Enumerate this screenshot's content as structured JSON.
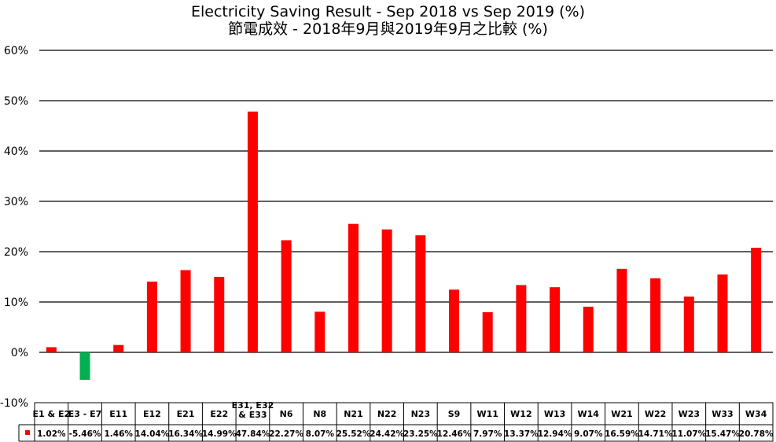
{
  "chart_data": {
    "type": "bar",
    "title": "Electricity Saving Result - Sep 2018 vs Sep 2019 (%)",
    "subtitle": "節電成效 - 2018年9月與2019年9月之比較 (%)",
    "xlabel": "",
    "ylabel": "",
    "ylim": [
      -10,
      60
    ],
    "yticks": [
      "-10%",
      "0%",
      "10%",
      "20%",
      "30%",
      "40%",
      "50%",
      "60%"
    ],
    "ytick_values": [
      -10,
      0,
      10,
      20,
      30,
      40,
      50,
      60
    ],
    "grid": true,
    "categories": [
      [
        "E1 & E2"
      ],
      [
        "E3 - E7"
      ],
      [
        "E11"
      ],
      [
        "E12"
      ],
      [
        "E21"
      ],
      [
        "E22"
      ],
      [
        "E31, E32",
        "& E33"
      ],
      [
        "N6"
      ],
      [
        "N8"
      ],
      [
        "N21"
      ],
      [
        "N22"
      ],
      [
        "N23"
      ],
      [
        "S9"
      ],
      [
        "W11"
      ],
      [
        "W12"
      ],
      [
        "W13"
      ],
      [
        "W14"
      ],
      [
        "W21"
      ],
      [
        "W22"
      ],
      [
        "W23"
      ],
      [
        "W33"
      ],
      [
        "W34"
      ]
    ],
    "values": [
      1.02,
      -5.46,
      1.46,
      14.04,
      16.34,
      14.99,
      47.84,
      22.27,
      8.07,
      25.52,
      24.42,
      23.25,
      12.46,
      7.97,
      13.37,
      12.94,
      9.07,
      16.59,
      14.71,
      11.07,
      15.47,
      20.78
    ],
    "value_labels": [
      "1.02%",
      "-5.46%",
      "1.46%",
      "14.04%",
      "16.34%",
      "14.99%",
      "47.84%",
      "22.27%",
      "8.07%",
      "25.52%",
      "24.42%",
      "23.25%",
      "12.46%",
      "7.97%",
      "13.37%",
      "12.94%",
      "9.07%",
      "16.59%",
      "14.71%",
      "11.07%",
      "15.47%",
      "20.78%"
    ],
    "data_table": true,
    "colors": {
      "positive": "#ff0000",
      "negative": "#00b050",
      "legend_key": "#ff0000",
      "grid": "#000000"
    }
  }
}
